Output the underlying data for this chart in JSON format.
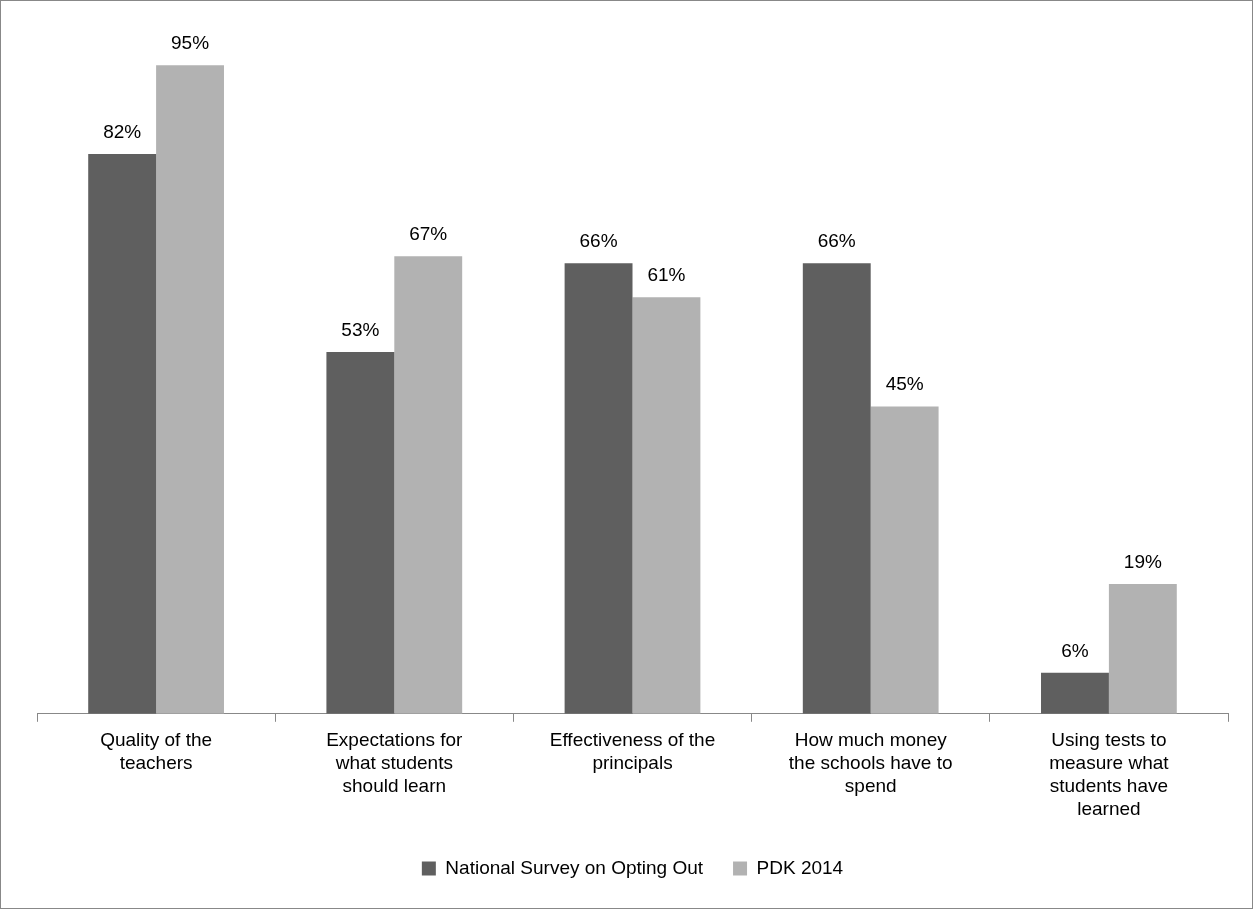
{
  "chart_data": {
    "type": "bar",
    "categories": [
      "Quality of the teachers",
      "Expectations for what students should learn",
      "Effectiveness of the principals",
      "How much money the schools have to spend",
      "Using tests to measure what students have learned"
    ],
    "series": [
      {
        "name": "National Survey on Opting Out",
        "color": "#5f5f5f",
        "values": [
          82,
          53,
          66,
          66,
          6
        ],
        "value_labels": [
          "82%",
          "53%",
          "66%",
          "66%",
          "6%"
        ]
      },
      {
        "name": "PDK 2014",
        "color": "#b2b2b2",
        "values": [
          95,
          67,
          61,
          45,
          19
        ],
        "value_labels": [
          "95%",
          "67%",
          "61%",
          "45%",
          "19%"
        ]
      }
    ],
    "tick_labels": "x",
    "grid": false,
    "legend": "bottom"
  }
}
